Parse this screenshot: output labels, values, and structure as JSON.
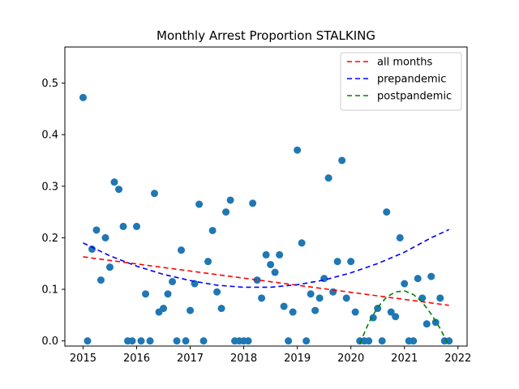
{
  "chart_data": {
    "type": "scatter",
    "title": "Monthly Arrest Proportion STALKING",
    "xlabel": "",
    "ylabel": "",
    "xlim": [
      2014.66,
      2022.17
    ],
    "ylim": [
      -0.01,
      0.57
    ],
    "xticks": [
      2015,
      2016,
      2017,
      2018,
      2019,
      2020,
      2021,
      2022
    ],
    "xtick_labels": [
      "2015",
      "2016",
      "2017",
      "2018",
      "2019",
      "2020",
      "2021",
      "2022"
    ],
    "yticks": [
      0.0,
      0.1,
      0.2,
      0.3,
      0.4,
      0.5
    ],
    "ytick_labels": [
      "0.0",
      "0.1",
      "0.2",
      "0.3",
      "0.4",
      "0.5"
    ],
    "grid": false,
    "legend_position": "top-right",
    "points": {
      "color": "#1f77b4",
      "x": [
        2015.0,
        2015.083,
        2015.167,
        2015.25,
        2015.333,
        2015.417,
        2015.5,
        2015.583,
        2015.667,
        2015.75,
        2015.833,
        2015.917,
        2016.0,
        2016.083,
        2016.167,
        2016.25,
        2016.333,
        2016.417,
        2016.5,
        2016.583,
        2016.667,
        2016.75,
        2016.833,
        2016.917,
        2017.0,
        2017.083,
        2017.167,
        2017.25,
        2017.333,
        2017.417,
        2017.5,
        2017.583,
        2017.667,
        2017.75,
        2017.833,
        2017.917,
        2018.0,
        2018.083,
        2018.167,
        2018.25,
        2018.333,
        2018.417,
        2018.5,
        2018.583,
        2018.667,
        2018.75,
        2018.833,
        2018.917,
        2019.0,
        2019.083,
        2019.167,
        2019.25,
        2019.333,
        2019.417,
        2019.5,
        2019.583,
        2019.667,
        2019.75,
        2019.833,
        2019.917,
        2020.0,
        2020.083,
        2020.167,
        2020.25,
        2020.333,
        2020.417,
        2020.5,
        2020.583,
        2020.667,
        2020.75,
        2020.833,
        2020.917,
        2021.0,
        2021.083,
        2021.167,
        2021.25,
        2021.333,
        2021.417,
        2021.5,
        2021.583,
        2021.667,
        2021.75,
        2021.833
      ],
      "y": [
        0.472,
        0.0,
        0.178,
        0.215,
        0.118,
        0.2,
        0.143,
        0.308,
        0.294,
        0.222,
        0.0,
        0.0,
        0.222,
        0.0,
        0.091,
        0.0,
        0.286,
        0.056,
        0.063,
        0.091,
        0.115,
        0.0,
        0.176,
        0.0,
        0.059,
        0.111,
        0.265,
        0.0,
        0.154,
        0.214,
        0.095,
        0.063,
        0.25,
        0.273,
        0.0,
        0.0,
        0.0,
        0.0,
        0.267,
        0.118,
        0.083,
        0.167,
        0.148,
        0.133,
        0.167,
        0.067,
        0.0,
        0.056,
        0.37,
        0.19,
        0.0,
        0.091,
        0.059,
        0.083,
        0.121,
        0.316,
        0.095,
        0.154,
        0.35,
        0.083,
        0.154,
        0.056,
        0.0,
        0.0,
        0.0,
        0.045,
        0.063,
        0.0,
        0.25,
        0.056,
        0.047,
        0.2,
        0.111,
        0.0,
        0.0,
        0.121,
        0.083,
        0.033,
        0.125,
        0.036,
        0.083,
        0.0,
        0.0
      ]
    },
    "series": [
      {
        "name": "all months",
        "color": "#ff0000",
        "dash": true,
        "x": [
          2015.0,
          2021.833
        ],
        "y": [
          0.163,
          0.069
        ]
      },
      {
        "name": "prepandemic",
        "color": "#0000ff",
        "dash": true,
        "x": [
          2015.0,
          2015.5,
          2016.0,
          2016.5,
          2017.0,
          2017.5,
          2018.0,
          2018.5,
          2019.0,
          2019.5,
          2020.0,
          2020.5,
          2021.0,
          2021.5,
          2021.833
        ],
        "y": [
          0.19,
          0.165,
          0.145,
          0.129,
          0.117,
          0.108,
          0.104,
          0.104,
          0.109,
          0.118,
          0.132,
          0.15,
          0.172,
          0.2,
          0.216
        ]
      },
      {
        "name": "postpandemic",
        "color": "#008000",
        "dash": true,
        "x": [
          2020.167,
          2020.333,
          2020.5,
          2020.667,
          2020.833,
          2021.0,
          2021.167,
          2021.333,
          2021.5,
          2021.667,
          2021.833
        ],
        "y": [
          -0.005,
          0.035,
          0.065,
          0.085,
          0.095,
          0.097,
          0.09,
          0.075,
          0.052,
          0.024,
          -0.01
        ]
      }
    ]
  }
}
